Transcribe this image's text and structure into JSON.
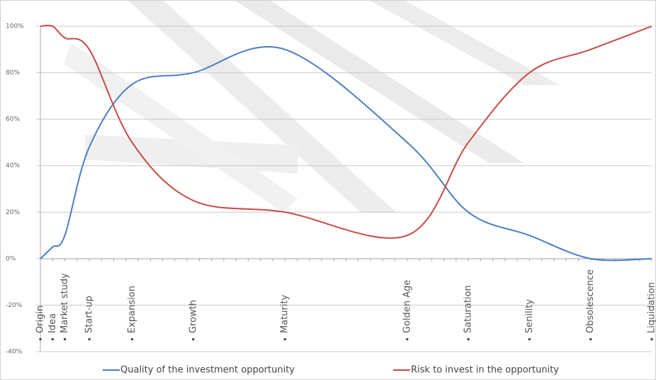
{
  "chart_data": {
    "type": "line",
    "x": [
      0,
      1,
      2,
      4,
      7.5,
      12.5,
      20,
      30,
      35,
      40,
      45,
      50
    ],
    "x_labels": [
      "Origin",
      "Idea",
      "Market study",
      "Start-up",
      "Expansion",
      "Growth",
      "Maturity",
      "Golden Age",
      "Saturation",
      "Senility",
      "Obsolescence",
      "Liquidation"
    ],
    "xlim": [
      0,
      50
    ],
    "series": [
      {
        "name": "Quality of the investment opportunity",
        "color": "#4a7ec6",
        "values": [
          0,
          5,
          10,
          48,
          75,
          80,
          90,
          50,
          20,
          10,
          0,
          0
        ]
      },
      {
        "name": "Risk to invest in the opportunity",
        "color": "#c84a45",
        "values": [
          100,
          100,
          95,
          90,
          50,
          25,
          20,
          10,
          50,
          80,
          90,
          100
        ]
      }
    ],
    "ylim": [
      -40,
      100
    ],
    "yticks": [
      {
        "value": -40,
        "label": "-40%"
      },
      {
        "value": -20,
        "label": "-20%"
      },
      {
        "value": 0,
        "label": "0%"
      },
      {
        "value": 20,
        "label": "20%"
      },
      {
        "value": 40,
        "label": "40%"
      },
      {
        "value": 60,
        "label": "60%"
      },
      {
        "value": 80,
        "label": "80%"
      },
      {
        "value": 100,
        "label": "100%"
      }
    ],
    "grid": true,
    "legend": "bottom"
  }
}
